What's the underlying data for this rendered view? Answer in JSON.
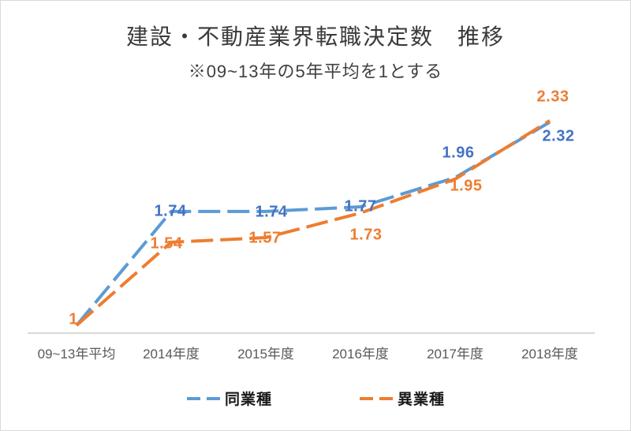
{
  "title": "建設・不動産業界転職決定数　推移",
  "subtitle": "※09~13年の5年平均を1とする",
  "chart_data": {
    "type": "line",
    "categories": [
      "09~13年平均",
      "2014年度",
      "2015年度",
      "2016年度",
      "2017年度",
      "2018年度"
    ],
    "series": [
      {
        "name": "同業種",
        "color": "#5B9BD5",
        "label_color": "#4472C4",
        "values": [
          1,
          1.74,
          1.74,
          1.77,
          1.96,
          2.32
        ],
        "labels": [
          "",
          "1.74",
          "1.74",
          "1.77",
          "1.96",
          "2.32"
        ],
        "label_offsets": [
          [
            0,
            0
          ],
          [
            -1,
            0
          ],
          [
            7,
            1
          ],
          [
            0,
            0
          ],
          [
            4,
            -31
          ],
          [
            11,
            18
          ]
        ]
      },
      {
        "name": "異業種",
        "color": "#ED7D31",
        "label_color": "#ED7D31",
        "values": [
          1,
          1.54,
          1.57,
          1.73,
          1.95,
          2.33
        ],
        "labels": [
          "1",
          "1.54",
          "1.57",
          "1.73",
          "1.95",
          "2.33"
        ],
        "label_offsets": [
          [
            -4,
            -7
          ],
          [
            -6,
            2
          ],
          [
            -1,
            1
          ],
          [
            7,
            28
          ],
          [
            14,
            9
          ],
          [
            4,
            -30
          ]
        ]
      }
    ],
    "line_style": "dashed",
    "markers": false,
    "grid": false,
    "y_axis_visible": false,
    "ylim": [
      0.95,
      2.58
    ],
    "legend_position": "bottom",
    "axis_color": "#D9D9D9",
    "tick_label_color": "#595959"
  }
}
